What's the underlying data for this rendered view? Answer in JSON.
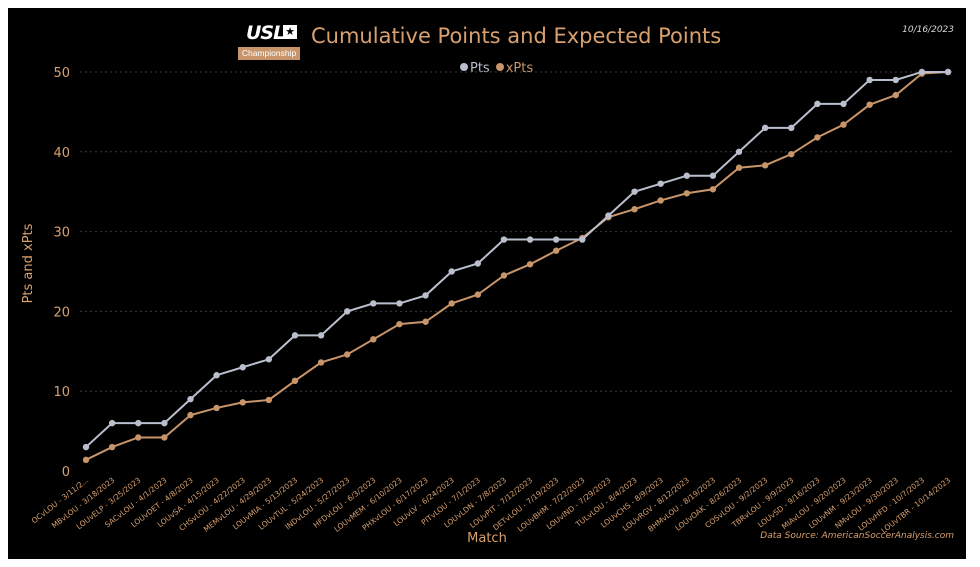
{
  "header": {
    "logo_text": "USL",
    "logo_badge": "Championship",
    "title": "Cumulative Points and Expected Points",
    "date": "10/16/2023",
    "source": "Data Source: AmericanSoccerAnalysis.com"
  },
  "colors": {
    "background": "#000000",
    "pts": "#b9bfcc",
    "xpts": "#c8956a",
    "axis_text": "#d9a06f",
    "grid": "#3a3a3a"
  },
  "chart_data": {
    "type": "line",
    "title": "Cumulative Points and Expected Points",
    "xlabel": "Match",
    "ylabel": "Pts and xPts",
    "ylim": [
      0,
      52
    ],
    "yticks": [
      0,
      10,
      20,
      30,
      40,
      50
    ],
    "grid": "horizontal dashed",
    "legend_position": "top-center",
    "categories": [
      "OCvLOU - 3/11/2...",
      "MBvLOU - 3/18/2023",
      "LOUvELP - 3/25/2023",
      "SACvLOU - 4/1/2023",
      "LOUvDET - 4/8/2023",
      "LOUvSA - 4/15/2023",
      "CHSvLOU - 4/22/2023",
      "MEMvLOU - 4/29/2023",
      "LOUvMIA - 5/13/2023",
      "LOUvTUL - 5/24/2023",
      "INDvLOU - 5/27/2023",
      "HFDvLOU - 6/3/2023",
      "LOUvMEM - 6/10/2023",
      "PHXvLOU - 6/17/2023",
      "LOUvLV - 6/24/2023",
      "PITvLOU - 7/1/2023",
      "LOUvLDN - 7/8/2023",
      "LOUvPIT - 7/12/2023",
      "DETvLOU - 7/19/2023",
      "LOUvBHM - 7/22/2023",
      "LOUvIND - 7/29/2023",
      "TULvLOU - 8/4/2023",
      "LOUvCHS - 8/9/2023",
      "LOUvRGV - 8/12/2023",
      "BHMvLOU - 8/19/2023",
      "LOUvOAK - 8/26/2023",
      "COSvLOU - 9/2/2023",
      "TBRvLOU - 9/9/2023",
      "LOUvSD - 9/16/2023",
      "MIAvLOU - 9/20/2023",
      "LOUvNM - 9/23/2023",
      "NMvLOU - 9/30/2023",
      "LOUvHFD - 10/7/2023",
      "LOUvTBR - 10/14/2023"
    ],
    "series": [
      {
        "name": "Pts",
        "color": "#b9bfcc",
        "values": [
          3,
          6,
          6,
          6,
          9,
          12,
          13,
          14,
          17,
          17,
          20,
          21,
          21,
          22,
          25,
          26,
          29,
          29,
          29,
          29,
          32,
          35,
          36,
          37,
          37,
          40,
          43,
          43,
          46,
          46,
          49,
          49,
          50,
          50
        ]
      },
      {
        "name": "xPts",
        "color": "#c8956a",
        "values": [
          1.4,
          3.0,
          4.2,
          4.2,
          7.0,
          7.9,
          8.6,
          8.9,
          11.3,
          13.6,
          14.6,
          16.5,
          18.4,
          18.7,
          21.0,
          22.1,
          24.5,
          25.9,
          27.6,
          29.2,
          31.8,
          32.8,
          33.9,
          34.8,
          35.3,
          38.0,
          38.3,
          39.7,
          41.8,
          43.4,
          45.9,
          47.1,
          49.8,
          50.0
        ]
      }
    ]
  }
}
